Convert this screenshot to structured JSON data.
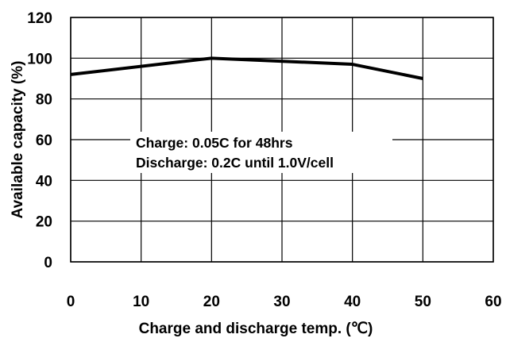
{
  "chart_data": {
    "type": "line",
    "title": "",
    "xlabel": "Charge and discharge temp. (℃)",
    "ylabel": "Available capacity (%)",
    "xlim": [
      0,
      60
    ],
    "ylim": [
      0,
      120
    ],
    "xticks": [
      0,
      10,
      20,
      30,
      40,
      50,
      60
    ],
    "yticks": [
      0,
      20,
      40,
      60,
      80,
      100,
      120
    ],
    "grid": true,
    "legend": "none",
    "series": [
      {
        "x": [
          0,
          20,
          40,
          50
        ],
        "y": [
          92,
          100,
          97,
          90
        ],
        "color": "#000000"
      }
    ],
    "annotations": [
      "Charge: 0.05C for 48hrs",
      "Discharge: 0.2C until 1.0V/cell"
    ]
  }
}
